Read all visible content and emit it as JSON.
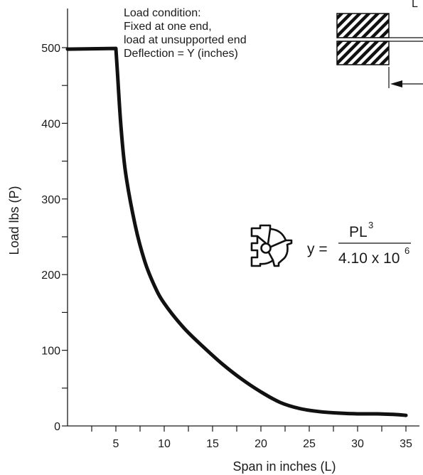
{
  "chart_data": {
    "type": "line",
    "title": "",
    "xlabel": "Span in inches (L)",
    "ylabel": "Load lbs (P)",
    "xlim": [
      0,
      35
    ],
    "ylim": [
      0,
      500
    ],
    "x_ticks": [
      5,
      10,
      15,
      20,
      25,
      30,
      35
    ],
    "y_ticks": [
      0,
      100,
      200,
      300,
      400,
      500
    ],
    "grid": false,
    "series": [
      {
        "x": [
          0,
          5,
          5.15,
          5.5,
          6,
          7,
          8,
          9,
          10,
          12,
          14,
          16,
          18,
          20,
          22,
          24,
          26,
          28,
          30,
          32,
          34,
          35
        ],
        "y": [
          498,
          499,
          470,
          400,
          335,
          265,
          217,
          185,
          162,
          130,
          105,
          82,
          62,
          45,
          31,
          23,
          19,
          17,
          16,
          16,
          15,
          14
        ]
      }
    ],
    "annotations": {
      "load_condition": [
        "Load condition:",
        "Fixed at one end,",
        "load at unsupported end",
        "Deflection = Y (inches)"
      ],
      "formula": {
        "lhs": "y =",
        "numerator": "PL",
        "numerator_exponent": "3",
        "denominator": "4.10 x 10",
        "denominator_exponent": "6"
      },
      "corner_mark": "L"
    }
  },
  "colors": {
    "line": "#111111",
    "axis": "#1a1a1a",
    "hatch": "#111111"
  },
  "icons": [
    "beam-fixed-end-diagram",
    "quarter-round-profile-icon"
  ]
}
